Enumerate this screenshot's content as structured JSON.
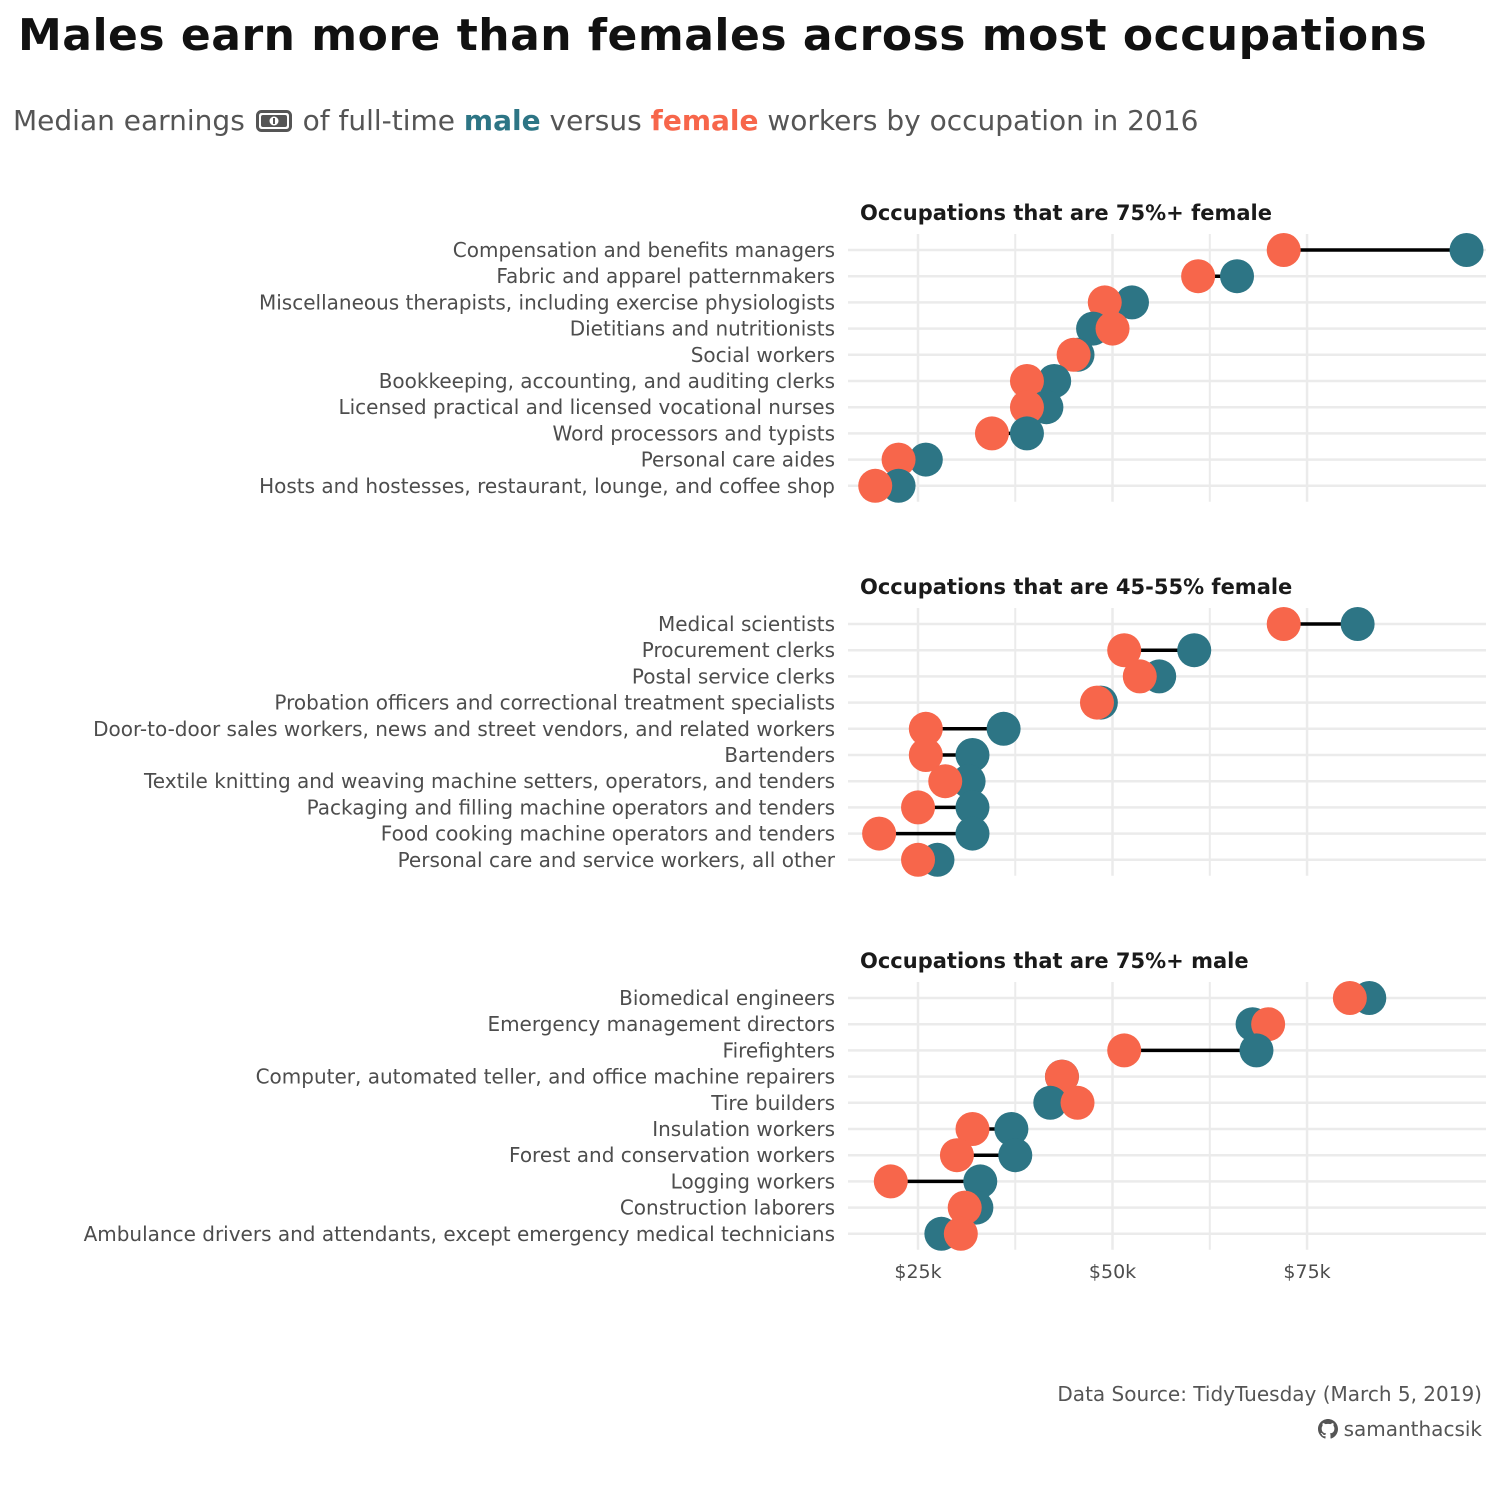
{
  "title": "Males earn more than females across most occupations",
  "subtitle": {
    "prefix": "Median earnings",
    "icon": "money-icon",
    "mid1": "of full-time",
    "male_word": "male",
    "mid2": "versus",
    "female_word": "female",
    "suffix": "workers by occupation in 2016"
  },
  "colors": {
    "male": "#2d7585",
    "female": "#f7664b",
    "segment": "#000000",
    "grid": "#ebebeb"
  },
  "chart_data": {
    "type": "dumbbell",
    "xlabel": "",
    "ylabel": "",
    "xlim": [
      16000,
      98000
    ],
    "xticks": [
      25000,
      50000,
      75000
    ],
    "xtick_labels": [
      "$25k",
      "$50k",
      "$75k"
    ],
    "series_names": [
      "male",
      "female"
    ],
    "panels": [
      {
        "title": "Occupations that are 75%+ female",
        "rows": [
          {
            "label": "Compensation and benefits managers",
            "male": 95500,
            "female": 72000
          },
          {
            "label": "Fabric and apparel patternmakers",
            "male": 66000,
            "female": 61000
          },
          {
            "label": "Miscellaneous therapists, including exercise physiologists",
            "male": 52500,
            "female": 49000
          },
          {
            "label": "Dietitians and nutritionists",
            "male": 47500,
            "female": 50000
          },
          {
            "label": "Social workers",
            "male": 45500,
            "female": 45000
          },
          {
            "label": "Bookkeeping, accounting, and auditing clerks",
            "male": 42500,
            "female": 39000
          },
          {
            "label": "Licensed practical and licensed vocational nurses",
            "male": 41500,
            "female": 39000
          },
          {
            "label": "Word processors and typists",
            "male": 39000,
            "female": 34500
          },
          {
            "label": "Personal care aides",
            "male": 26000,
            "female": 22500
          },
          {
            "label": "Hosts and hostesses, restaurant, lounge, and coffee shop",
            "male": 22500,
            "female": 19500
          }
        ]
      },
      {
        "title": "Occupations that are 45-55% female",
        "rows": [
          {
            "label": "Medical scientists",
            "male": 81500,
            "female": 72000
          },
          {
            "label": "Procurement clerks",
            "male": 60500,
            "female": 51500
          },
          {
            "label": "Postal service clerks",
            "male": 56000,
            "female": 53500
          },
          {
            "label": "Probation officers and correctional treatment specialists",
            "male": 48500,
            "female": 48000
          },
          {
            "label": "Door-to-door sales workers, news and street vendors, and related workers",
            "male": 36000,
            "female": 26000
          },
          {
            "label": "Bartenders",
            "male": 32000,
            "female": 26000
          },
          {
            "label": "Textile knitting and weaving machine setters, operators, and tenders",
            "male": 31500,
            "female": 28500
          },
          {
            "label": "Packaging and filling machine operators and tenders",
            "male": 32000,
            "female": 25000
          },
          {
            "label": "Food cooking machine operators and tenders",
            "male": 32000,
            "female": 20000
          },
          {
            "label": "Personal care and service workers, all other",
            "male": 27500,
            "female": 25000
          }
        ]
      },
      {
        "title": "Occupations that are 75%+ male",
        "rows": [
          {
            "label": "Biomedical engineers",
            "male": 83000,
            "female": 80500
          },
          {
            "label": "Emergency management directors",
            "male": 68000,
            "female": 70000
          },
          {
            "label": "Firefighters",
            "male": 68500,
            "female": 51500
          },
          {
            "label": "Computer, automated teller, and office machine repairers",
            "male": 43500,
            "female": 43500
          },
          {
            "label": "Tire builders",
            "male": 42000,
            "female": 45500
          },
          {
            "label": "Insulation workers",
            "male": 37000,
            "female": 32000
          },
          {
            "label": "Forest and conservation workers",
            "male": 37500,
            "female": 30000
          },
          {
            "label": "Logging workers",
            "male": 33000,
            "female": 21500
          },
          {
            "label": "Construction laborers",
            "male": 32500,
            "female": 31000
          },
          {
            "label": "Ambulance drivers and attendants, except emergency medical technicians",
            "male": 28000,
            "female": 30500
          }
        ]
      }
    ]
  },
  "footer": {
    "source": "Data Source: TidyTuesday (March 5, 2019)",
    "credit_icon": "github-icon",
    "credit": "samanthacsik"
  }
}
